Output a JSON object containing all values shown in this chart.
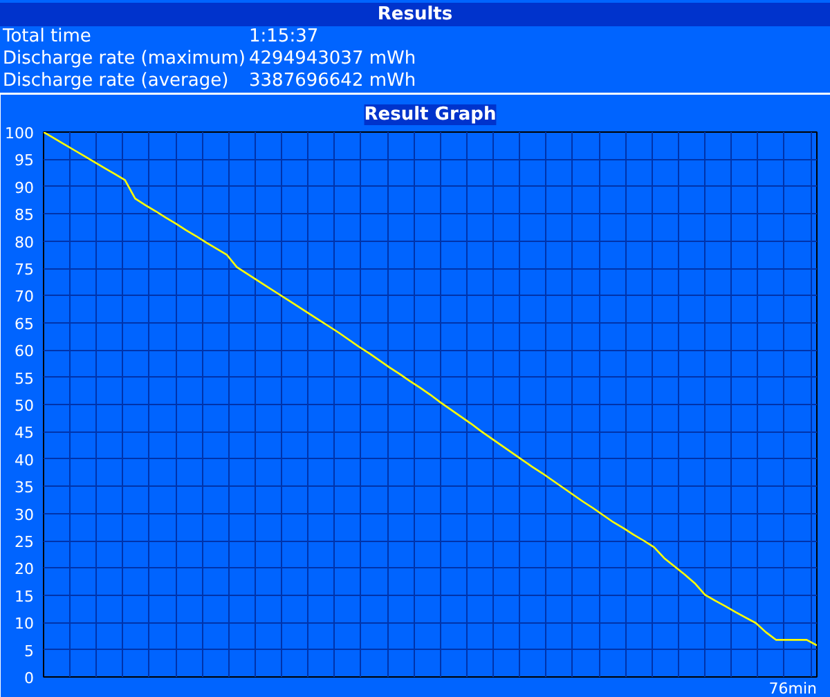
{
  "chart_data": {
    "type": "line",
    "title": "Result Graph",
    "annotations": [
      "Results",
      "Total time",
      "1:15:37",
      "Discharge rate (maximum)",
      "4294943037 mWh",
      "Discharge rate (average)",
      "3387696642 mWh",
      "76min"
    ],
    "categories": [
      null,
      null,
      null,
      null,
      null,
      null,
      null,
      null,
      null,
      null,
      null,
      null,
      null,
      null,
      null,
      null,
      null,
      null,
      null,
      null,
      null,
      null,
      null,
      null,
      null,
      null,
      null,
      null,
      null,
      null,
      null,
      null,
      null,
      null,
      null,
      null,
      null,
      null,
      null,
      null,
      null,
      null,
      null,
      null,
      null,
      null,
      null,
      null,
      null,
      null,
      null,
      null,
      null,
      null,
      null,
      null,
      null,
      null,
      null,
      null,
      null,
      null,
      null,
      null,
      null,
      null,
      null,
      null,
      null,
      null,
      null,
      null,
      null,
      null,
      null,
      null,
      null
    ],
    "series": [
      {
        "color": "#ffff00",
        "values": [
          100,
          98.9,
          97.8,
          96.7,
          95.6,
          94.5,
          93.4,
          92.3,
          91.2,
          87.8,
          86.6,
          85.5,
          84.3,
          83.2,
          82.0,
          80.9,
          79.7,
          78.6,
          77.5,
          75.2,
          74.0,
          72.8,
          71.6,
          70.4,
          69.2,
          68.0,
          66.8,
          65.6,
          64.4,
          63.2,
          61.9,
          60.6,
          59.4,
          58.1,
          56.8,
          55.6,
          54.3,
          53.1,
          51.8,
          50.4,
          49.1,
          47.8,
          46.5,
          45.1,
          43.8,
          42.5,
          41.2,
          39.9,
          38.6,
          37.4,
          36.1,
          34.8,
          33.5,
          32.2,
          31.0,
          29.7,
          28.4,
          27.3,
          26.1,
          25.0,
          23.8,
          21.8,
          20.3,
          18.8,
          17.2,
          15.1,
          14.0,
          13.0,
          11.9,
          10.9,
          9.9,
          8.2,
          6.8,
          6.8,
          6.8,
          6.8,
          5.8
        ]
      }
    ],
    "tick_labels": "y",
    "ylim": [
      0,
      100
    ],
    "yticks": [
      0,
      5,
      10,
      15,
      20,
      25,
      30,
      35,
      40,
      45,
      50,
      55,
      60,
      65,
      70,
      75,
      80,
      85,
      90,
      95,
      100
    ],
    "grid": true
  }
}
